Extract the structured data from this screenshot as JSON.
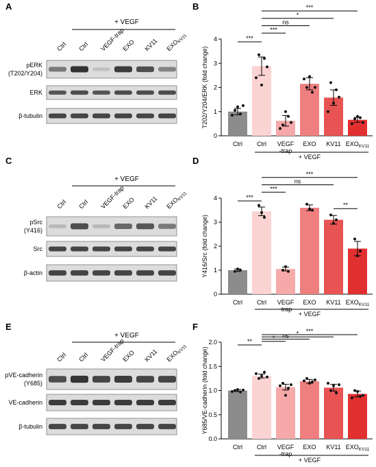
{
  "colors": {
    "ctrl_gray": "#8c8c8c",
    "ctrl_pink": "#fbd3d3",
    "vegf_trap": "#f6a9a9",
    "exo": "#ef7f7f",
    "kv11": "#e85454",
    "exo_kv11": "#e23030",
    "blot_bg": "#dcdcdc",
    "band": "#2a2a2a"
  },
  "common": {
    "plus_vegf": "+ VEGF",
    "x_labels": [
      "Ctrl",
      "Ctrl",
      "VEGF\n-trap",
      "EXO",
      "KV11",
      "EXO"
    ],
    "exo_kv_sub": "KV11"
  },
  "panels": [
    {
      "letter": "A",
      "lane_labels": [
        "Ctrl",
        "Ctrl",
        "VEGF-trap",
        "EXO",
        "KV11",
        "EXO"
      ],
      "blots": [
        {
          "label": "pERK\n(T202/Y204)",
          "bands": [
            0.55,
            0.95,
            0.15,
            0.9,
            0.8,
            0.5
          ]
        },
        {
          "label": "ERK",
          "bands": [
            0.75,
            0.8,
            0.75,
            0.8,
            0.8,
            0.8
          ]
        },
        {
          "label": "β-tubulin",
          "bands": [
            0.85,
            0.85,
            0.85,
            0.85,
            0.85,
            0.85
          ]
        }
      ]
    },
    {
      "letter": "C",
      "lane_labels": [
        "Ctrl",
        "Ctrl",
        "VEGF-trap",
        "EXO",
        "KV11",
        "EXO"
      ],
      "blots": [
        {
          "label": "pSrc\n(Y416)",
          "bands": [
            0.2,
            0.8,
            0.2,
            0.65,
            0.75,
            0.55
          ]
        },
        {
          "label": "Src",
          "bands": [
            0.85,
            0.85,
            0.85,
            0.85,
            0.85,
            0.85
          ]
        },
        {
          "label": "β-actin",
          "bands": [
            0.85,
            0.85,
            0.85,
            0.85,
            0.85,
            0.85
          ]
        }
      ]
    },
    {
      "letter": "E",
      "lane_labels": [
        "Ctrl",
        "Ctrl",
        "VEGF-trap",
        "EXO",
        "KV11",
        "EXO"
      ],
      "blots": [
        {
          "label": "pVE-cadherin\n(Y685)",
          "bands": [
            0.8,
            0.95,
            0.85,
            0.9,
            0.85,
            0.85
          ]
        },
        {
          "label": "VE-cadherin",
          "bands": [
            0.9,
            0.9,
            0.9,
            0.9,
            0.9,
            0.9
          ]
        },
        {
          "label": "β-tubulin",
          "bands": [
            0.85,
            0.85,
            0.85,
            0.85,
            0.85,
            0.85
          ]
        }
      ]
    }
  ],
  "chart_data": [
    {
      "letter": "B",
      "type": "bar",
      "categories": [
        "Ctrl",
        "Ctrl",
        "VEGF-trap",
        "EXO",
        "KV11",
        "EXOKV11"
      ],
      "values": [
        1.0,
        2.88,
        0.62,
        2.15,
        1.58,
        0.66
      ],
      "errors": [
        0.13,
        0.38,
        0.22,
        0.25,
        0.32,
        0.1
      ],
      "points": [
        [
          0.85,
          1.05,
          1.2,
          0.9,
          1.25
        ],
        [
          2.4,
          3.35,
          2.1,
          3.2,
          2.85
        ],
        [
          0.3,
          0.45,
          1.0,
          0.8,
          0.55
        ],
        [
          2.35,
          2.0,
          2.45,
          1.8,
          2.0
        ],
        [
          1.0,
          2.2,
          1.35,
          1.9,
          1.6
        ],
        [
          0.5,
          0.7,
          0.8,
          0.75,
          0.55
        ]
      ],
      "ylabel": "T202/Y204/ERK (fold change)",
      "ylim": [
        0,
        4
      ],
      "yticks": [
        0,
        1,
        2,
        3,
        4
      ],
      "sig": [
        {
          "from": 0,
          "to": 1,
          "label": "***"
        },
        {
          "from": 1,
          "to": 2,
          "label": "***"
        },
        {
          "from": 1,
          "to": 3,
          "label": "ns"
        },
        {
          "from": 1,
          "to": 4,
          "label": "*"
        },
        {
          "from": 1,
          "to": 5,
          "label": "***"
        }
      ]
    },
    {
      "letter": "D",
      "type": "bar",
      "categories": [
        "Ctrl",
        "Ctrl",
        "VEGF-trap",
        "EXO",
        "KV11",
        "EXOKV11"
      ],
      "values": [
        1.0,
        3.45,
        1.05,
        3.6,
        3.1,
        1.9
      ],
      "errors": [
        0.05,
        0.18,
        0.08,
        0.12,
        0.18,
        0.3
      ],
      "points": [
        [
          0.95,
          1.05,
          1.0
        ],
        [
          3.7,
          3.4,
          3.2
        ],
        [
          1.0,
          1.15,
          0.95
        ],
        [
          3.75,
          3.55,
          3.5
        ],
        [
          3.3,
          2.95,
          3.1
        ],
        [
          2.3,
          1.6,
          1.8
        ]
      ],
      "ylabel": "Y416/Src (fold change)",
      "ylim": [
        0,
        4
      ],
      "yticks": [
        0,
        1,
        2,
        3,
        4
      ],
      "sig": [
        {
          "from": 0,
          "to": 1,
          "label": "***"
        },
        {
          "from": 1,
          "to": 2,
          "label": "***"
        },
        {
          "from": 1,
          "to": 4,
          "label": "ns"
        },
        {
          "from": 1,
          "to": 5,
          "label": "***"
        },
        {
          "from": 4,
          "to": 5,
          "label": "**"
        }
      ]
    },
    {
      "letter": "F",
      "type": "bar",
      "categories": [
        "Ctrl",
        "Ctrl",
        "VEGF-trap",
        "EXO",
        "KV11",
        "EXOKV11"
      ],
      "values": [
        1.0,
        1.3,
        1.07,
        1.19,
        1.06,
        0.93
      ],
      "errors": [
        0.02,
        0.04,
        0.06,
        0.04,
        0.07,
        0.06
      ],
      "points": [
        [
          0.98,
          1.0,
          1.02,
          0.97,
          1.01
        ],
        [
          1.35,
          1.25,
          1.3,
          1.38,
          1.28
        ],
        [
          1.1,
          1.15,
          0.9,
          1.05,
          1.12
        ],
        [
          1.2,
          1.25,
          1.15,
          1.18,
          1.22
        ],
        [
          1.15,
          1.0,
          1.1,
          0.95,
          1.12
        ],
        [
          0.85,
          1.0,
          0.98,
          0.88,
          0.9
        ]
      ],
      "ylabel": "Y685/VE-cadherin (fold change)",
      "ylim": [
        0,
        2.0
      ],
      "yticks": [
        0,
        0.5,
        1.0,
        1.5,
        2.0
      ],
      "tick_fmt": 1,
      "sig": [
        {
          "from": 0,
          "to": 1,
          "label": "**"
        },
        {
          "from": 1,
          "to": 2,
          "label": "*"
        },
        {
          "from": 1,
          "to": 3,
          "label": "ns"
        },
        {
          "from": 1,
          "to": 4,
          "label": "*"
        },
        {
          "from": 1,
          "to": 5,
          "label": "***"
        }
      ]
    }
  ]
}
